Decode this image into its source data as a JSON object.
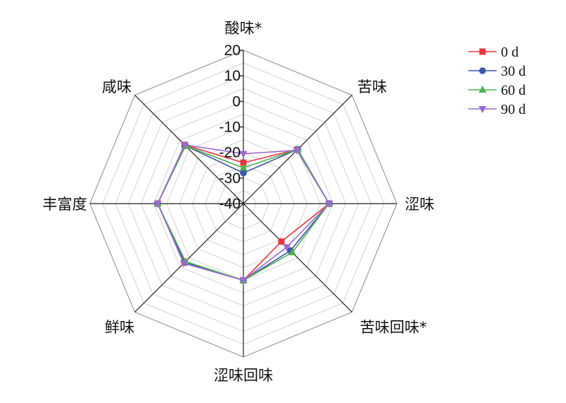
{
  "chart_data": {
    "type": "radar",
    "axes": [
      "酸味*",
      "苦味",
      "涩味",
      "苦味回味*",
      "涩味回味",
      "鲜味",
      "丰富度",
      "咸味"
    ],
    "ticks": [
      "20",
      "10",
      "0",
      "-10",
      "-20",
      "-30",
      "-40"
    ],
    "rlim": [
      -40,
      20
    ],
    "grid": true,
    "legend_position": "top-right",
    "series": [
      {
        "name": "0 d",
        "color": "#e8363d",
        "marker": "square",
        "values": [
          -24,
          -10,
          -6.5,
          -19,
          -10,
          -7.5,
          -6.5,
          -7.5
        ]
      },
      {
        "name": "30 d",
        "color": "#3b57a6",
        "marker": "circle",
        "values": [
          -28,
          -10,
          -6.5,
          -14,
          -10,
          -7.5,
          -6.5,
          -8
        ]
      },
      {
        "name": "60 d",
        "color": "#4caf50",
        "marker": "triangle-up",
        "values": [
          -26,
          -10,
          -6.5,
          -13,
          -10,
          -8,
          -6.5,
          -8
        ]
      },
      {
        "name": "90 d",
        "color": "#9b6ad0",
        "marker": "triangle-down",
        "values": [
          -20.5,
          -10.5,
          -6.5,
          -16,
          -10,
          -7,
          -6.5,
          -7.5
        ]
      }
    ]
  }
}
